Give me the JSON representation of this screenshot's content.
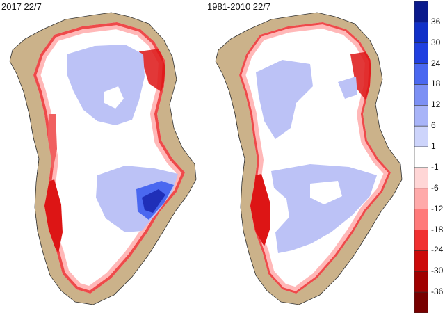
{
  "panels": [
    {
      "title": "2017 22/7"
    },
    {
      "title": "1981-2010 22/7"
    }
  ],
  "legend": {
    "labels": [
      "36",
      "30",
      "24",
      "18",
      "12",
      "6",
      "1",
      "-1",
      "-6",
      "-12",
      "-18",
      "-24",
      "-30",
      "-36"
    ],
    "colors": [
      "#0a1a8c",
      "#1030c8",
      "#2040e0",
      "#4a68f0",
      "#7c90f4",
      "#a8b4f8",
      "#cdd4fb",
      "#ffffff",
      "#ffd6d6",
      "#ffaaaa",
      "#ff7a7a",
      "#f03030",
      "#cc0a0a",
      "#a00000",
      "#780000"
    ]
  },
  "colors": {
    "land": "#cbb28a",
    "ice_neutral": "#ffffff",
    "gain_light": "#bcc2f6",
    "loss_light": "#ffb8b8",
    "loss_strong": "#dd1515",
    "gain_strong": "#1f2fb8"
  }
}
